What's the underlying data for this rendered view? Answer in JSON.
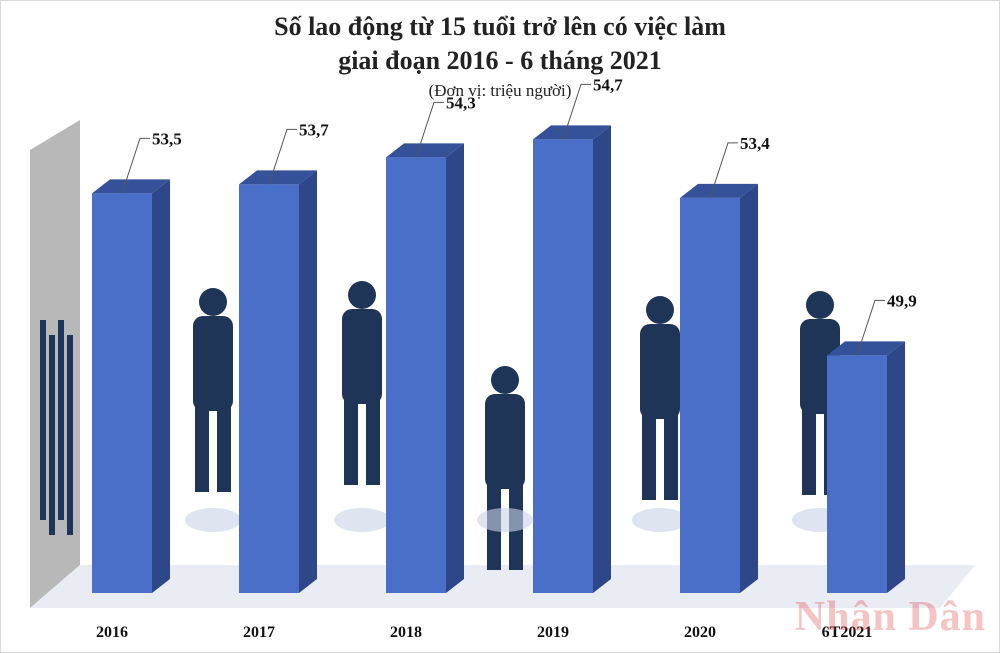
{
  "title_line1": "Số lao động từ 15 tuổi trở lên có việc làm",
  "title_line2": "giai đoạn 2016 - 6 tháng 2021",
  "subtitle": "(Đơn vị: triệu người)",
  "watermark": "Nhân Dân",
  "colors": {
    "bar_front": "#4a6fc9",
    "bar_side": "#2d4788",
    "bar_top": "#35519a",
    "silhouette": "#1f3558"
  },
  "chart_data": {
    "type": "bar",
    "categories": [
      "2016",
      "2017",
      "2018",
      "2019",
      "2020",
      "6T2021"
    ],
    "values": [
      53.5,
      53.7,
      54.3,
      54.7,
      53.4,
      49.9
    ],
    "value_labels": [
      "53,5",
      "53,7",
      "54,3",
      "54,7",
      "53,4",
      "49,9"
    ],
    "title": "Số lao động từ 15 tuổi trở lên có việc làm giai đoạn 2016 - 6 tháng 2021",
    "ylabel": "(Đơn vị: triệu người)",
    "xlabel": "",
    "grid": false,
    "legend": "none"
  }
}
